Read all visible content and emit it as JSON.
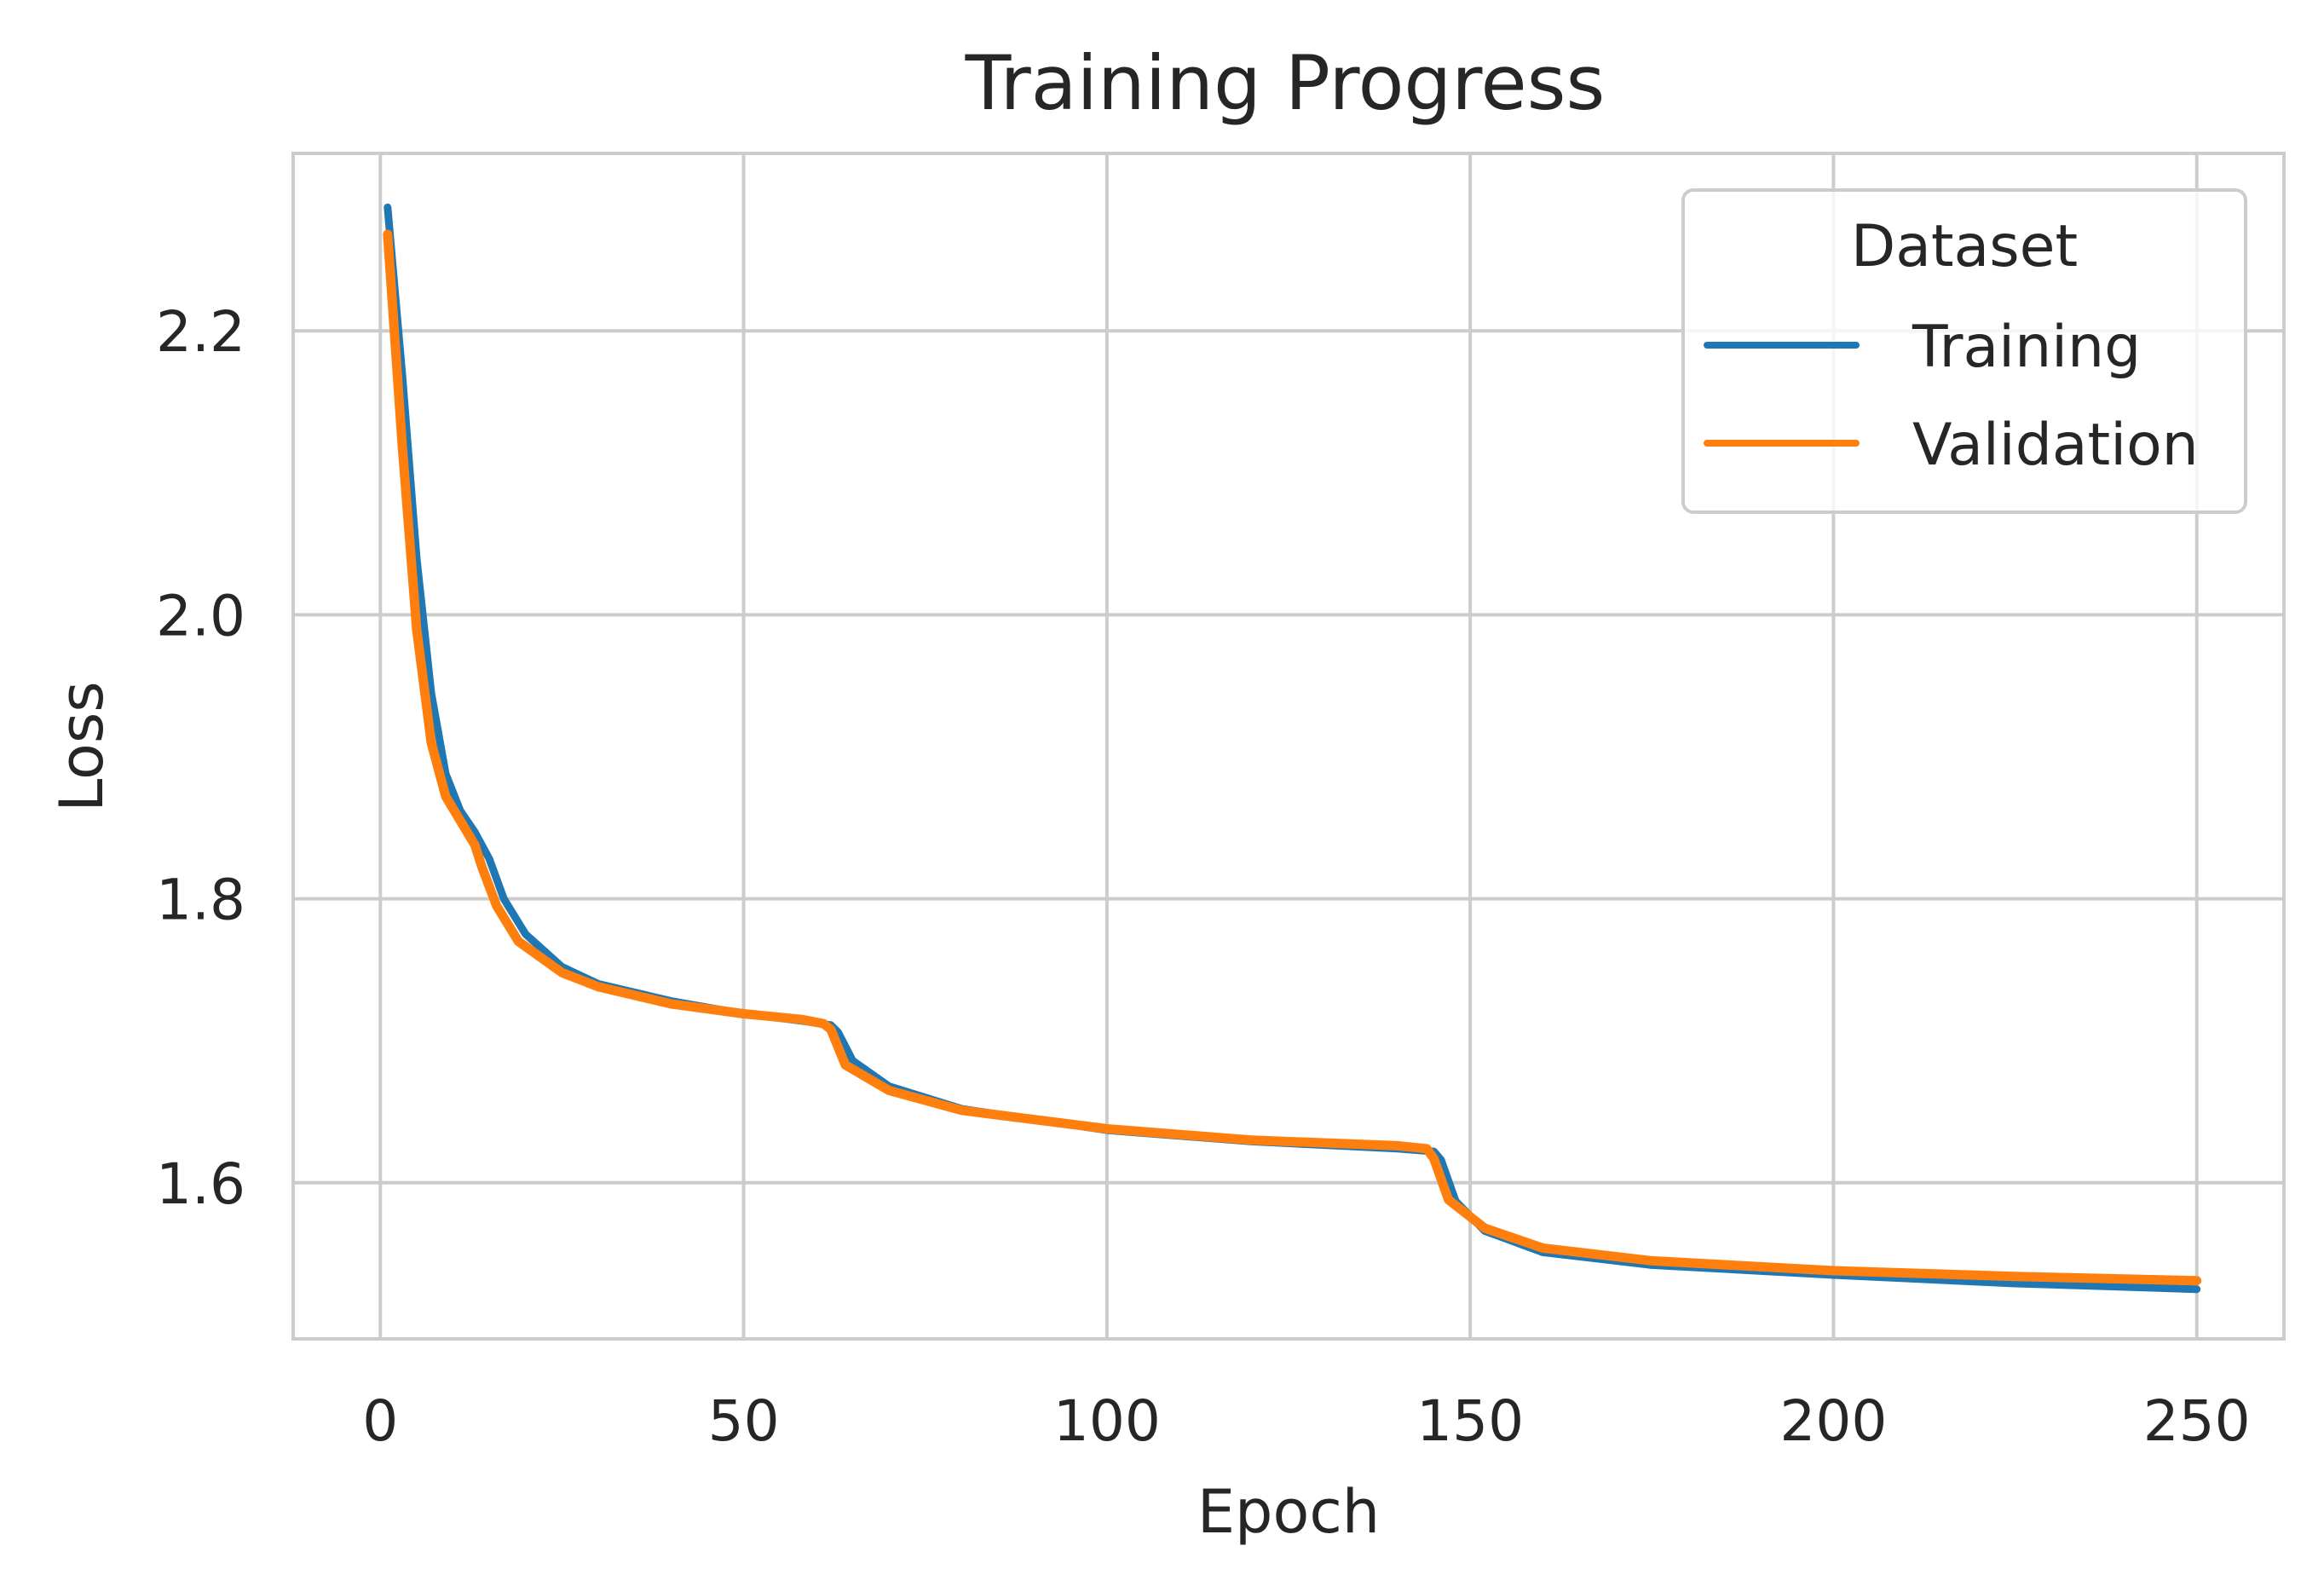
{
  "chart_data": {
    "type": "line",
    "title": "Training Progress",
    "xlabel": "Epoch",
    "ylabel": "Loss",
    "xlim": [
      -12,
      262
    ],
    "ylim": [
      1.49,
      2.325
    ],
    "xticks": [
      0,
      50,
      100,
      150,
      200,
      250
    ],
    "yticks": [
      1.6,
      1.8,
      2.0,
      2.2
    ],
    "xtick_labels": [
      "0",
      "50",
      "100",
      "150",
      "200",
      "250"
    ],
    "ytick_labels": [
      "1.6",
      "1.8",
      "2.0",
      "2.2"
    ],
    "grid": true,
    "legend": {
      "title": "Dataset",
      "position": "top-right"
    },
    "series": [
      {
        "name": "Training",
        "color": "#1f77b4",
        "x": [
          1,
          3,
          5,
          7,
          9,
          11,
          13,
          15,
          17,
          20,
          25,
          30,
          40,
          50,
          58,
          62,
          63,
          65,
          70,
          80,
          100,
          120,
          140,
          145,
          146,
          148,
          152,
          160,
          175,
          200,
          225,
          250
        ],
        "y": [
          2.287,
          2.17,
          2.04,
          1.945,
          1.888,
          1.862,
          1.847,
          1.828,
          1.8,
          1.775,
          1.752,
          1.74,
          1.728,
          1.719,
          1.714,
          1.711,
          1.706,
          1.686,
          1.668,
          1.652,
          1.637,
          1.629,
          1.624,
          1.622,
          1.616,
          1.587,
          1.566,
          1.551,
          1.542,
          1.535,
          1.529,
          1.525
        ]
      },
      {
        "name": "Validation",
        "color": "#ff7f0e",
        "x": [
          1,
          3,
          5,
          7,
          9,
          11,
          13,
          14,
          16,
          19,
          25,
          30,
          40,
          50,
          58,
          61,
          62,
          64,
          70,
          80,
          100,
          120,
          140,
          144,
          145,
          147,
          152,
          160,
          175,
          200,
          225,
          250
        ],
        "y": [
          2.268,
          2.12,
          1.99,
          1.91,
          1.872,
          1.855,
          1.838,
          1.822,
          1.795,
          1.77,
          1.748,
          1.738,
          1.726,
          1.719,
          1.715,
          1.712,
          1.708,
          1.683,
          1.665,
          1.651,
          1.638,
          1.63,
          1.626,
          1.624,
          1.617,
          1.588,
          1.568,
          1.554,
          1.545,
          1.538,
          1.534,
          1.531
        ]
      }
    ]
  }
}
